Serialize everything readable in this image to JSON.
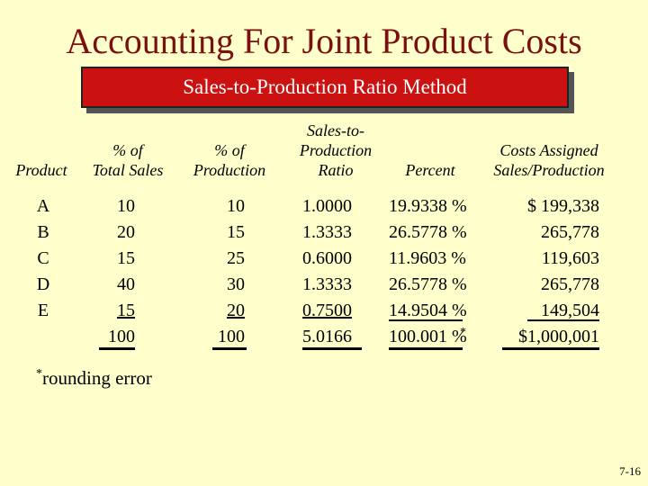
{
  "title": "Accounting For Joint Product Costs",
  "banner": "Sales-to-Production Ratio Method",
  "headers": {
    "product": "Product",
    "pct_sales": [
      "% of",
      "Total Sales"
    ],
    "pct_prod": [
      "% of",
      "Production"
    ],
    "ratio": [
      "Sales-to-",
      "Production",
      "Ratio"
    ],
    "percent": "Percent",
    "costs": [
      "Costs Assigned",
      "Sales/Production"
    ]
  },
  "rows": {
    "product": [
      "A",
      "B",
      "C",
      "D",
      "E"
    ],
    "pct_sales": [
      "10",
      "20",
      "15",
      "40",
      "15",
      "100"
    ],
    "pct_prod": [
      "10",
      "15",
      "25",
      "30",
      "20",
      "100"
    ],
    "ratio": [
      "1.0000",
      "1.3333",
      "0.6000",
      "1.3333",
      "0.7500",
      "5.0166"
    ],
    "percent": [
      "19.9338 %",
      "26.5778 %",
      "11.9603 %",
      "26.5778 %",
      "14.9504 %",
      "100.001 %"
    ],
    "costs": [
      "$ 199,338",
      "265,778",
      "119,603",
      "265,778",
      "149,504",
      "$1,000,001"
    ]
  },
  "asterisk": "*",
  "footnote": "rounding error",
  "page_number": "7-16"
}
